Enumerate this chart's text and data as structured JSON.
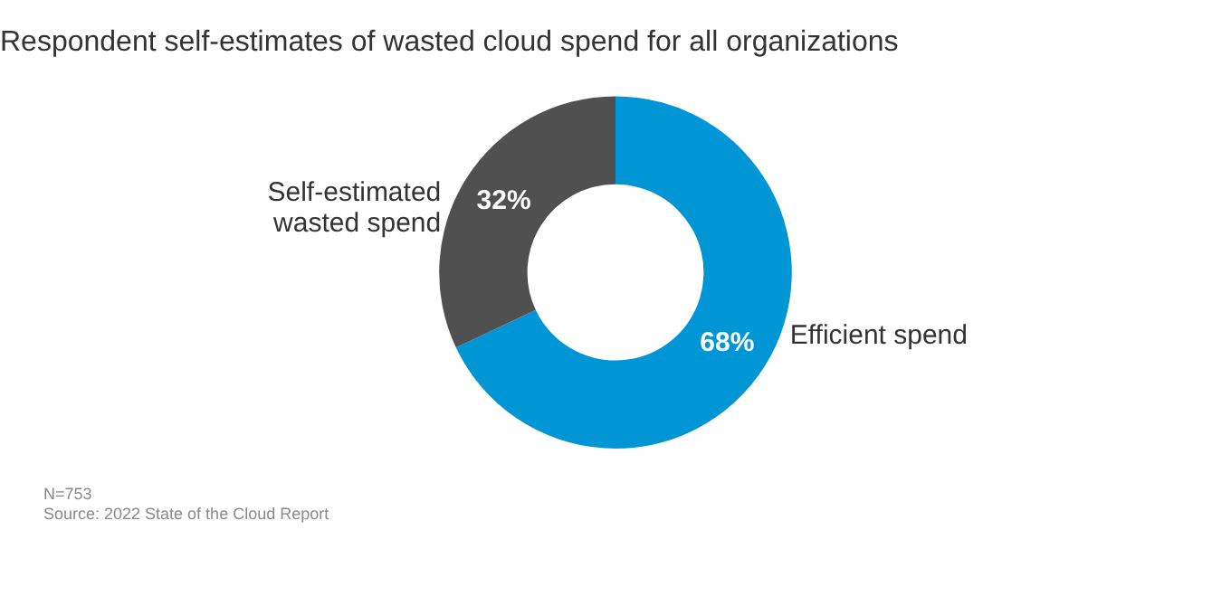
{
  "chart_data": {
    "type": "donut",
    "title": "Respondent self-estimates of wasted cloud spend for all organizations",
    "categories": [
      "Efficient spend",
      "Self-estimated wasted spend"
    ],
    "values": [
      68,
      32
    ],
    "colors": [
      "#0096d6",
      "#505050"
    ],
    "value_labels": [
      "68%",
      "32%"
    ],
    "legend": false,
    "annotations": [
      "N=753",
      "Source: 2022 State of the Cloud Report"
    ]
  }
}
